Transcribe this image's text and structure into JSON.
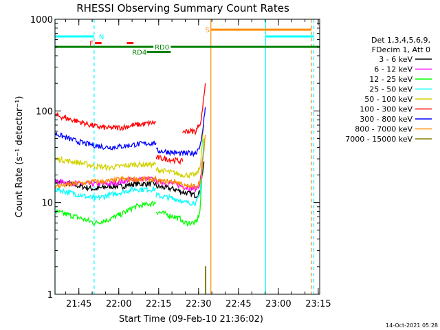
{
  "chart_data": {
    "type": "line",
    "title": "RHESSI Observing Summary Count Rates",
    "xlabel": "Start Time (09-Feb-10 21:36:02)",
    "ylabel": "Count Rate (s⁻¹ detector⁻¹)",
    "yscale": "log",
    "ylim": [
      1,
      1000
    ],
    "xlim_minutes": [
      0,
      99.5
    ],
    "x_tick_labels": [
      "21:45",
      "22:00",
      "22:15",
      "22:30",
      "22:45",
      "23:00",
      "23:15"
    ],
    "x_tick_minutes": [
      8.97,
      23.97,
      38.97,
      53.97,
      68.97,
      83.97,
      98.97
    ],
    "y_tick_labels": [
      "1",
      "10",
      "100",
      "1000"
    ],
    "y_tick_values": [
      1,
      10,
      100,
      1000
    ],
    "legend": {
      "placement": "right",
      "header": [
        "Det 1,3,4,5,6,9,",
        "FDecim 1, Att 0"
      ],
      "entries": [
        {
          "label": "3 - 6 keV",
          "color": "#000000"
        },
        {
          "label": "6 - 12 keV",
          "color": "#ff00ff"
        },
        {
          "label": "12 - 25 keV",
          "color": "#00ff00"
        },
        {
          "label": "25 - 50 keV",
          "color": "#00ffff"
        },
        {
          "label": "50 - 100 keV",
          "color": "#d2d200"
        },
        {
          "label": "100 - 300 keV",
          "color": "#ff0000"
        },
        {
          "label": "300 - 800 keV",
          "color": "#0000ff"
        },
        {
          "label": "800 - 7000 keV",
          "color": "#ff8c00"
        },
        {
          "label": "7000 - 15000 keV",
          "color": "#808000"
        }
      ]
    },
    "series": [
      {
        "name": "3 - 6 keV",
        "color": "#000000",
        "segments": [
          [
            [
              0,
              17
            ],
            [
              10,
              15
            ],
            [
              15,
              14
            ],
            [
              20,
              15
            ],
            [
              25,
              15
            ],
            [
              30,
              16
            ],
            [
              38,
              16
            ]
          ],
          [
            [
              38,
              15
            ],
            [
              45,
              14
            ],
            [
              48,
              13
            ]
          ],
          [
            [
              48,
              13
            ],
            [
              53,
              12
            ],
            [
              54.5,
              13
            ],
            [
              56,
              28
            ]
          ]
        ]
      },
      {
        "name": "6 - 12 keV",
        "color": "#ff00ff",
        "segments": [
          [
            [
              0,
              17
            ],
            [
              10,
              16
            ],
            [
              15,
              16
            ],
            [
              20,
              16
            ],
            [
              25,
              17
            ],
            [
              30,
              18
            ],
            [
              38,
              18
            ]
          ],
          [
            [
              38,
              17
            ],
            [
              45,
              16
            ],
            [
              48,
              15
            ]
          ],
          [
            [
              48,
              15
            ],
            [
              53,
              14
            ],
            [
              54.5,
              16
            ],
            [
              56,
              40
            ]
          ]
        ]
      },
      {
        "name": "12 - 25 keV",
        "color": "#00ff00",
        "segments": [
          [
            [
              0,
              8
            ],
            [
              8,
              7
            ],
            [
              15,
              6
            ],
            [
              20,
              6.5
            ],
            [
              25,
              7.5
            ],
            [
              30,
              9
            ],
            [
              38,
              10
            ]
          ],
          [
            [
              38,
              8
            ],
            [
              45,
              7
            ],
            [
              48,
              6.5
            ]
          ],
          [
            [
              48,
              6
            ],
            [
              53,
              6
            ],
            [
              54.5,
              8
            ],
            [
              56,
              50
            ]
          ]
        ]
      },
      {
        "name": "25 - 50 keV",
        "color": "#00ffff",
        "segments": [
          [
            [
              0,
              14
            ],
            [
              10,
              12
            ],
            [
              15,
              11
            ],
            [
              20,
              12
            ],
            [
              25,
              13
            ],
            [
              30,
              14
            ],
            [
              38,
              14
            ]
          ],
          [
            [
              38,
              12
            ],
            [
              45,
              11
            ],
            [
              48,
              10.5
            ]
          ],
          [
            [
              48,
              10
            ],
            [
              53,
              10
            ],
            [
              54.5,
              12
            ],
            [
              56,
              45
            ]
          ]
        ]
      },
      {
        "name": "50 - 100 keV",
        "color": "#d2d200",
        "segments": [
          [
            [
              0,
              30
            ],
            [
              10,
              27
            ],
            [
              15,
              25
            ],
            [
              20,
              24
            ],
            [
              25,
              25
            ],
            [
              30,
              26
            ],
            [
              38,
              26
            ]
          ],
          [
            [
              38,
              23
            ],
            [
              45,
              21
            ],
            [
              48,
              20
            ]
          ],
          [
            [
              48,
              20
            ],
            [
              53,
              20
            ],
            [
              54.5,
              24
            ],
            [
              56,
              70
            ]
          ]
        ]
      },
      {
        "name": "100 - 300 keV",
        "color": "#ff0000",
        "segments": [
          [
            [
              0,
              90
            ],
            [
              5,
              82
            ],
            [
              10,
              75
            ],
            [
              15,
              68
            ],
            [
              20,
              65
            ],
            [
              25,
              66
            ],
            [
              30,
              70
            ],
            [
              38,
              75
            ]
          ],
          [
            [
              38,
              31
            ],
            [
              45,
              29
            ],
            [
              48,
              28
            ]
          ],
          [
            [
              48,
              60
            ],
            [
              53,
              60
            ],
            [
              55,
              80
            ],
            [
              56.5,
              200
            ]
          ]
        ]
      },
      {
        "name": "300 - 800 keV",
        "color": "#0000ff",
        "segments": [
          [
            [
              0,
              57
            ],
            [
              5,
              50
            ],
            [
              10,
              45
            ],
            [
              15,
              42
            ],
            [
              20,
              40
            ],
            [
              25,
              41
            ],
            [
              30,
              43
            ],
            [
              38,
              45
            ]
          ],
          [
            [
              38,
              37
            ],
            [
              45,
              35
            ],
            [
              48,
              34
            ]
          ],
          [
            [
              48,
              34
            ],
            [
              53,
              35
            ],
            [
              55,
              45
            ],
            [
              56.5,
              110
            ]
          ]
        ]
      },
      {
        "name": "800 - 7000 keV",
        "color": "#ff8c00",
        "segments": [
          [
            [
              0,
              15
            ],
            [
              8,
              16
            ],
            [
              15,
              17
            ],
            [
              20,
              17
            ],
            [
              25,
              18
            ],
            [
              30,
              18
            ],
            [
              38,
              18
            ]
          ],
          [
            [
              38,
              17
            ],
            [
              45,
              17
            ],
            [
              48,
              16
            ]
          ],
          [
            [
              48,
              15
            ],
            [
              53,
              15
            ],
            [
              55,
              18
            ],
            [
              56.5,
              55
            ]
          ]
        ]
      },
      {
        "name": "7000 - 15000 keV",
        "color": "#808000",
        "segments": [
          [
            [
              56.5,
              1
            ],
            [
              56.5,
              2
            ],
            [
              56.7,
              2
            ],
            [
              56.7,
              1
            ]
          ]
        ]
      }
    ],
    "annotations": {
      "vertical_lines": [
        {
          "x": 0.0,
          "color": "#00ffff",
          "style": "solid"
        },
        {
          "x": 14.7,
          "color": "#00ffff",
          "style": "dashed"
        },
        {
          "x": 58.6,
          "color": "#ff8c00",
          "style": "solid"
        },
        {
          "x": 79.2,
          "color": "#00ffff",
          "style": "solid"
        },
        {
          "x": 96.4,
          "color": "#ff8c00",
          "style": "dashed"
        },
        {
          "x": 97.3,
          "color": "#00ffff",
          "style": "dashed"
        }
      ],
      "state_bars": [
        {
          "label": "N",
          "color": "#00ffff",
          "y": 650,
          "intervals": [
            [
              0,
              14.7
            ],
            [
              79.2,
              97.3
            ]
          ],
          "label_x": 16.5
        },
        {
          "label": "F",
          "color": "#ff0000",
          "y": 550,
          "intervals": [
            [
              15,
              17.5
            ],
            [
              27,
              29.5
            ]
          ],
          "label_x": 13
        },
        {
          "label": "S",
          "color": "#ff8c00",
          "y": 770,
          "intervals": [
            [
              58.6,
              96.4
            ]
          ],
          "label_x": 56.5
        },
        {
          "label": "RD0",
          "color": "#008000",
          "y": 500,
          "intervals": [
            [
              0,
              37
            ],
            [
              43.5,
              99.5
            ]
          ],
          "label_x": 37.5
        },
        {
          "label": "RD4",
          "color": "#008000",
          "y": 440,
          "intervals": [
            [
              34.5,
              43.5
            ]
          ],
          "label_x": 29
        }
      ]
    },
    "footer_date": "14-Oct-2021 05:28"
  }
}
